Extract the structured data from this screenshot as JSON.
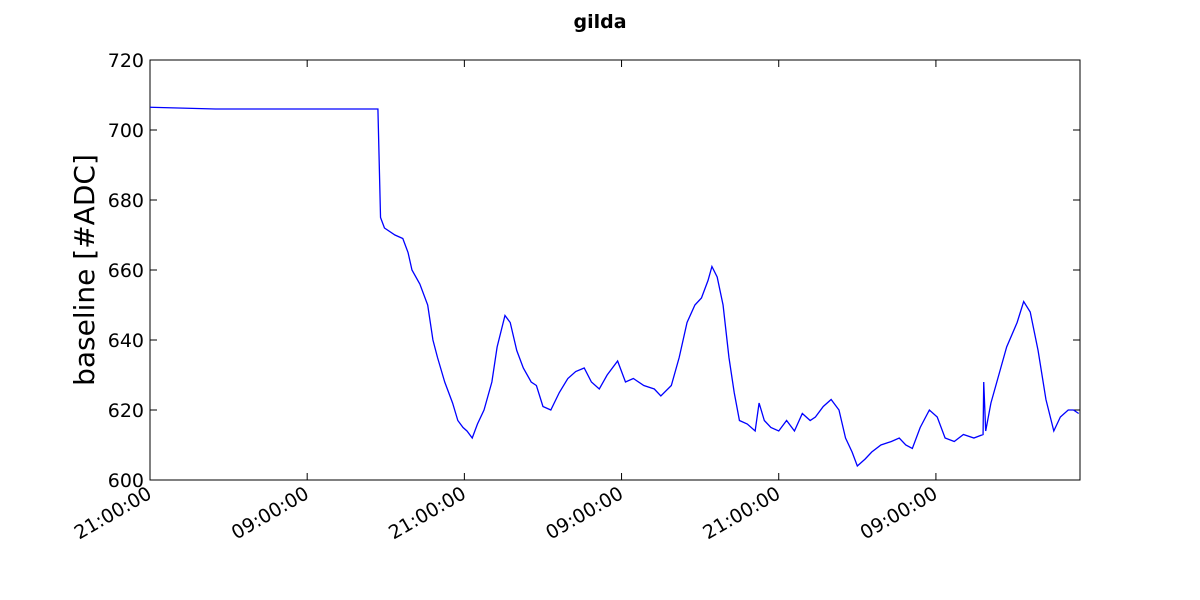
{
  "chart_data": {
    "type": "line",
    "title": "gilda",
    "y_label": "baseline [#ADC]",
    "xlim": [
      0,
      71
    ],
    "ylim": [
      600,
      720
    ],
    "xticks": [
      {
        "value": 0,
        "label": "21:00:00"
      },
      {
        "value": 12,
        "label": "09:00:00"
      },
      {
        "value": 24,
        "label": "21:00:00"
      },
      {
        "value": 36,
        "label": "09:00:00"
      },
      {
        "value": 48,
        "label": "21:00:00"
      },
      {
        "value": 60,
        "label": "09:00:00"
      }
    ],
    "yticks": [
      600,
      620,
      640,
      660,
      680,
      700,
      720
    ],
    "series": [
      {
        "color": "#0000ff",
        "x": [
          0,
          5,
          10,
          17.4,
          17.6,
          17.9,
          18.7,
          19.3,
          19.7,
          20.0,
          20.6,
          21.2,
          21.6,
          21.95,
          22.5,
          23.1,
          23.5,
          23.9,
          24.2,
          24.6,
          25.0,
          25.5,
          26.1,
          26.5,
          27.1,
          27.5,
          28.0,
          28.5,
          29.1,
          29.5,
          30.0,
          30.6,
          31.25,
          31.9,
          32.5,
          33.15,
          33.7,
          34.3,
          34.9,
          35.7,
          36.3,
          36.9,
          37.7,
          38.5,
          39.0,
          39.8,
          40.4,
          41.0,
          41.6,
          42.1,
          42.6,
          42.9,
          43.3,
          43.75,
          44.2,
          44.6,
          45.0,
          45.6,
          46.2,
          46.5,
          46.9,
          47.4,
          48.0,
          48.6,
          49.2,
          49.8,
          50.4,
          50.8,
          51.4,
          52.0,
          52.6,
          53.1,
          53.6,
          54.0,
          54.6,
          55.1,
          55.8,
          56.6,
          57.2,
          57.7,
          58.2,
          58.8,
          59.5,
          60.1,
          60.7,
          61.4,
          62.1,
          62.9,
          63.6,
          63.65,
          63.8,
          64.2,
          64.8,
          65.4,
          66.2,
          66.7,
          67.2,
          67.8,
          68.4,
          69.0,
          69.5,
          70.1,
          70.5,
          70.9
        ],
        "values": [
          706.5,
          706,
          706,
          706,
          675,
          672,
          670,
          669,
          665,
          660,
          656,
          650,
          640,
          635,
          628,
          622,
          617,
          615,
          614,
          612,
          616,
          620,
          628,
          638,
          647,
          645,
          637,
          632,
          628,
          627,
          621,
          620,
          625,
          629,
          631,
          632,
          628,
          626,
          630,
          634,
          628,
          629,
          627,
          626,
          624,
          627,
          635,
          645,
          650,
          652,
          657,
          661,
          658,
          650,
          635,
          625,
          617,
          616,
          614,
          622,
          617,
          615,
          614,
          617,
          614,
          619,
          617,
          618,
          621,
          623,
          620,
          612,
          608,
          604,
          606,
          608,
          610,
          611,
          612,
          610,
          609,
          615,
          620,
          618,
          612,
          611,
          613,
          612,
          613,
          628,
          614,
          622,
          630,
          638,
          645,
          651,
          648,
          637,
          623,
          614,
          618,
          620,
          620,
          619
        ]
      }
    ]
  }
}
